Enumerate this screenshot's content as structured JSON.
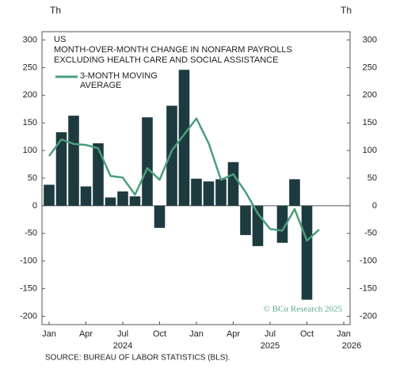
{
  "chart_data": {
    "type": "bar",
    "title_lines": [
      "US",
      "MONTH-OVER-MONTH CHANGE IN NONFARM PAYROLLS",
      "EXCLUDING HEALTH CARE AND SOCIAL ASSISTANCE"
    ],
    "y_unit": "Th",
    "y2_unit": "Th",
    "x": [
      "2024-01",
      "2024-02",
      "2024-03",
      "2024-04",
      "2024-05",
      "2024-06",
      "2024-07",
      "2024-08",
      "2024-09",
      "2024-10",
      "2024-11",
      "2024-12",
      "2025-01",
      "2025-02",
      "2025-03",
      "2025-04",
      "2025-05",
      "2025-06",
      "2025-07",
      "2025-08",
      "2025-09",
      "2025-10",
      "2025-11"
    ],
    "series": [
      {
        "type": "bar",
        "color": "#1d3a3f",
        "values": [
          38,
          133,
          163,
          35,
          113,
          15,
          26,
          17,
          160,
          -40,
          181,
          246,
          49,
          44,
          48,
          79,
          -53,
          -73,
          0,
          -67,
          48,
          -170,
          null
        ]
      },
      {
        "type": "line",
        "name": "3-MONTH MOVING AVERAGE",
        "color": "#4a9e7e",
        "values": [
          90,
          120,
          112,
          110,
          104,
          54,
          51,
          20,
          68,
          47,
          100,
          129,
          158,
          113,
          47,
          57,
          25,
          -14,
          -42,
          -45,
          -6,
          -63,
          -43
        ]
      }
    ],
    "ylim": [
      -215,
      315
    ],
    "yticks": [
      -200,
      -150,
      -100,
      -50,
      0,
      50,
      100,
      150,
      200,
      250,
      300
    ],
    "y2lim": [
      -215,
      315
    ],
    "y2ticks": [
      -200,
      -150,
      -100,
      -50,
      0,
      50,
      100,
      150,
      200,
      250,
      300
    ],
    "xticks": [
      {
        "value": "2024-01",
        "label": "Jan"
      },
      {
        "value": "2024-04",
        "label": "Apr"
      },
      {
        "value": "2024-07",
        "label": "Jul"
      },
      {
        "value": "2024-10",
        "label": "Oct"
      },
      {
        "value": "2025-01",
        "label": "Jan"
      },
      {
        "value": "2025-04",
        "label": "Apr"
      },
      {
        "value": "2025-07",
        "label": "Jul"
      },
      {
        "value": "2025-10",
        "label": "Oct"
      },
      {
        "value": "2026-01",
        "label": "Jan"
      }
    ],
    "year_labels": [
      {
        "value": "2024-07",
        "label": "2024"
      },
      {
        "value": "2025-07",
        "label": "2025"
      },
      {
        "value": "2026-01",
        "label": "2026"
      }
    ],
    "watermark": "© BCα Research 2025",
    "source": "SOURCE: BUREAU OF LABOR STATISTICS (BLS)."
  }
}
